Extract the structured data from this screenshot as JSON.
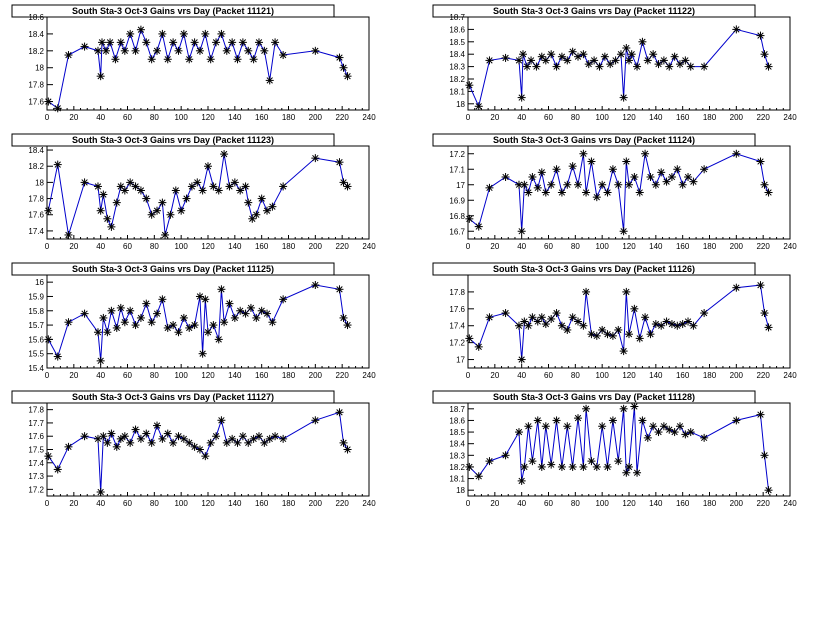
{
  "colors": {
    "line": "#0000cc",
    "marker": "#000000",
    "axis": "#000000"
  },
  "chart_data": [
    {
      "type": "line",
      "marker": "asterisk",
      "title": "South Sta-3 Oct-3 Gains vrs Day (Packet 11121)",
      "xlim": [
        0,
        240
      ],
      "ylim": [
        17.5,
        18.6
      ],
      "xticks": [
        0,
        20,
        40,
        60,
        80,
        100,
        120,
        140,
        160,
        180,
        200,
        220,
        240
      ],
      "yticks": [
        17.6,
        17.8,
        18,
        18.2,
        18.4,
        18.6
      ],
      "ytick_labels": [
        "17.6",
        "17.8",
        "18",
        "18.2",
        "18.4",
        "18.6"
      ],
      "x": [
        1,
        8,
        16,
        28,
        38,
        40,
        41,
        44,
        47,
        51,
        55,
        58,
        62,
        66,
        70,
        74,
        78,
        82,
        86,
        90,
        94,
        98,
        102,
        106,
        110,
        114,
        118,
        122,
        126,
        130,
        134,
        138,
        142,
        146,
        150,
        154,
        158,
        162,
        166,
        170,
        176,
        200,
        218,
        221,
        224
      ],
      "y": [
        17.6,
        17.52,
        18.15,
        18.25,
        18.2,
        17.9,
        18.3,
        18.2,
        18.3,
        18.1,
        18.3,
        18.2,
        18.4,
        18.2,
        18.45,
        18.3,
        18.1,
        18.2,
        18.4,
        18.1,
        18.3,
        18.2,
        18.4,
        18.1,
        18.3,
        18.2,
        18.4,
        18.1,
        18.3,
        18.4,
        18.2,
        18.3,
        18.1,
        18.3,
        18.2,
        18.1,
        18.3,
        18.2,
        17.85,
        18.3,
        18.15,
        18.2,
        18.12,
        18.0,
        17.9
      ]
    },
    {
      "type": "line",
      "marker": "asterisk",
      "title": "South Sta-3 Oct-3 Gains vrs Day (Packet 11122)",
      "xlim": [
        0,
        240
      ],
      "ylim": [
        17.95,
        18.7
      ],
      "xticks": [
        0,
        20,
        40,
        60,
        80,
        100,
        120,
        140,
        160,
        180,
        200,
        220,
        240
      ],
      "yticks": [
        18,
        18.1,
        18.2,
        18.3,
        18.4,
        18.5,
        18.6,
        18.7
      ],
      "ytick_labels": [
        "18",
        "18.1",
        "18.2",
        "18.3",
        "18.4",
        "18.5",
        "18.6",
        "18.7"
      ],
      "x": [
        1,
        8,
        16,
        28,
        38,
        40,
        41,
        44,
        47,
        51,
        55,
        58,
        62,
        66,
        70,
        74,
        78,
        82,
        86,
        90,
        94,
        98,
        102,
        106,
        110,
        114,
        116,
        118,
        120,
        122,
        126,
        130,
        134,
        138,
        142,
        146,
        150,
        154,
        158,
        162,
        166,
        176,
        200,
        218,
        221,
        224
      ],
      "y": [
        18.15,
        17.98,
        18.35,
        18.37,
        18.35,
        18.05,
        18.4,
        18.3,
        18.35,
        18.3,
        18.38,
        18.35,
        18.4,
        18.3,
        18.38,
        18.35,
        18.42,
        18.38,
        18.4,
        18.32,
        18.35,
        18.3,
        18.38,
        18.32,
        18.35,
        18.4,
        18.05,
        18.45,
        18.35,
        18.4,
        18.3,
        18.5,
        18.35,
        18.4,
        18.32,
        18.35,
        18.3,
        18.38,
        18.32,
        18.35,
        18.3,
        18.3,
        18.6,
        18.55,
        18.4,
        18.3
      ]
    },
    {
      "type": "line",
      "marker": "asterisk",
      "title": "South Sta-3 Oct-3 Gains vrs Day (Packet 11123)",
      "xlim": [
        0,
        240
      ],
      "ylim": [
        17.3,
        18.45
      ],
      "xticks": [
        0,
        20,
        40,
        60,
        80,
        100,
        120,
        140,
        160,
        180,
        200,
        220,
        240
      ],
      "yticks": [
        17.4,
        17.6,
        17.8,
        18,
        18.2,
        18.4
      ],
      "ytick_labels": [
        "17.4",
        "17.6",
        "17.8",
        "18",
        "18.2",
        "18.4"
      ],
      "x": [
        1,
        8,
        16,
        28,
        38,
        40,
        42,
        45,
        48,
        52,
        55,
        58,
        62,
        66,
        70,
        74,
        78,
        82,
        86,
        88,
        92,
        96,
        100,
        104,
        108,
        112,
        116,
        120,
        124,
        128,
        132,
        136,
        140,
        144,
        148,
        150,
        153,
        156,
        160,
        164,
        168,
        176,
        200,
        218,
        221,
        224
      ],
      "y": [
        17.65,
        18.22,
        17.35,
        18.0,
        17.95,
        17.65,
        17.85,
        17.55,
        17.45,
        17.75,
        17.95,
        17.9,
        18.0,
        17.95,
        17.9,
        17.8,
        17.6,
        17.65,
        17.75,
        17.35,
        17.6,
        17.9,
        17.65,
        17.8,
        17.95,
        18.0,
        17.9,
        18.2,
        17.95,
        17.9,
        18.35,
        17.95,
        18.0,
        17.9,
        17.95,
        17.75,
        17.55,
        17.6,
        17.8,
        17.65,
        17.7,
        17.95,
        18.3,
        18.25,
        18.0,
        17.95
      ]
    },
    {
      "type": "line",
      "marker": "asterisk",
      "title": "South Sta-3 Oct-3 Gains vrs Day (Packet 11124)",
      "xlim": [
        0,
        240
      ],
      "ylim": [
        16.65,
        17.25
      ],
      "xticks": [
        0,
        20,
        40,
        60,
        80,
        100,
        120,
        140,
        160,
        180,
        200,
        220,
        240
      ],
      "yticks": [
        16.7,
        16.8,
        16.9,
        17,
        17.1,
        17.2
      ],
      "ytick_labels": [
        "16.7",
        "16.8",
        "16.9",
        "17",
        "17.1",
        "17.2"
      ],
      "x": [
        1,
        8,
        16,
        28,
        38,
        40,
        42,
        45,
        48,
        52,
        55,
        58,
        62,
        66,
        70,
        74,
        78,
        82,
        86,
        88,
        92,
        96,
        100,
        104,
        108,
        112,
        116,
        118,
        120,
        124,
        128,
        132,
        136,
        140,
        144,
        148,
        152,
        156,
        160,
        164,
        168,
        176,
        200,
        218,
        221,
        224
      ],
      "y": [
        16.78,
        16.73,
        16.98,
        17.05,
        17.0,
        16.7,
        17.0,
        16.95,
        17.05,
        16.98,
        17.08,
        16.95,
        17.0,
        17.1,
        16.95,
        17.0,
        17.12,
        17.0,
        17.2,
        16.95,
        17.15,
        16.92,
        17.0,
        16.95,
        17.1,
        17.0,
        16.7,
        17.15,
        17.0,
        17.05,
        16.95,
        17.2,
        17.05,
        17.0,
        17.08,
        17.02,
        17.05,
        17.1,
        17.0,
        17.05,
        17.02,
        17.1,
        17.2,
        17.15,
        17.0,
        16.95
      ]
    },
    {
      "type": "line",
      "marker": "asterisk",
      "title": "South Sta-3 Oct-3 Gains vrs Day (Packet 11125)",
      "xlim": [
        0,
        240
      ],
      "ylim": [
        15.4,
        16.05
      ],
      "xticks": [
        0,
        20,
        40,
        60,
        80,
        100,
        120,
        140,
        160,
        180,
        200,
        220,
        240
      ],
      "yticks": [
        15.4,
        15.5,
        15.6,
        15.7,
        15.8,
        15.9,
        16
      ],
      "ytick_labels": [
        "15.4",
        "15.5",
        "15.6",
        "15.7",
        "15.8",
        "15.9",
        "16"
      ],
      "x": [
        1,
        8,
        16,
        28,
        38,
        40,
        42,
        45,
        48,
        52,
        55,
        58,
        62,
        66,
        70,
        74,
        78,
        82,
        86,
        90,
        94,
        98,
        102,
        106,
        110,
        114,
        116,
        118,
        120,
        124,
        128,
        130,
        132,
        136,
        140,
        144,
        148,
        152,
        156,
        160,
        164,
        168,
        176,
        200,
        218,
        221,
        224
      ],
      "y": [
        15.6,
        15.48,
        15.72,
        15.78,
        15.65,
        15.45,
        15.75,
        15.65,
        15.8,
        15.68,
        15.82,
        15.72,
        15.8,
        15.7,
        15.75,
        15.85,
        15.72,
        15.78,
        15.88,
        15.68,
        15.7,
        15.65,
        15.75,
        15.68,
        15.7,
        15.9,
        15.5,
        15.88,
        15.65,
        15.7,
        15.6,
        15.95,
        15.72,
        15.85,
        15.75,
        15.8,
        15.78,
        15.82,
        15.75,
        15.8,
        15.78,
        15.72,
        15.88,
        15.98,
        15.95,
        15.75,
        15.7
      ]
    },
    {
      "type": "line",
      "marker": "asterisk",
      "title": "South Sta-3 Oct-3 Gains vrs Day (Packet 11126)",
      "xlim": [
        0,
        240
      ],
      "ylim": [
        16.9,
        18.0
      ],
      "xticks": [
        0,
        20,
        40,
        60,
        80,
        100,
        120,
        140,
        160,
        180,
        200,
        220,
        240
      ],
      "yticks": [
        17,
        17.2,
        17.4,
        17.6,
        17.8
      ],
      "ytick_labels": [
        "17",
        "17.2",
        "17.4",
        "17.6",
        "17.8"
      ],
      "x": [
        1,
        8,
        16,
        28,
        38,
        40,
        42,
        45,
        48,
        52,
        55,
        58,
        62,
        66,
        70,
        74,
        78,
        82,
        86,
        88,
        92,
        96,
        100,
        104,
        108,
        112,
        116,
        118,
        120,
        124,
        128,
        132,
        136,
        140,
        144,
        148,
        152,
        156,
        160,
        164,
        168,
        176,
        200,
        218,
        221,
        224
      ],
      "y": [
        17.25,
        17.15,
        17.5,
        17.55,
        17.4,
        17.0,
        17.45,
        17.4,
        17.5,
        17.45,
        17.5,
        17.42,
        17.48,
        17.55,
        17.4,
        17.35,
        17.5,
        17.45,
        17.4,
        17.8,
        17.3,
        17.28,
        17.35,
        17.3,
        17.28,
        17.35,
        17.1,
        17.8,
        17.3,
        17.6,
        17.25,
        17.5,
        17.3,
        17.42,
        17.4,
        17.45,
        17.42,
        17.4,
        17.42,
        17.45,
        17.4,
        17.55,
        17.85,
        17.88,
        17.55,
        17.38
      ]
    },
    {
      "type": "line",
      "marker": "asterisk",
      "title": "South Sta-3 Oct-3 Gains vrs Day (Packet 11127)",
      "xlim": [
        0,
        240
      ],
      "ylim": [
        17.15,
        17.85
      ],
      "xticks": [
        0,
        20,
        40,
        60,
        80,
        100,
        120,
        140,
        160,
        180,
        200,
        220,
        240
      ],
      "yticks": [
        17.2,
        17.3,
        17.4,
        17.5,
        17.6,
        17.7,
        17.8
      ],
      "ytick_labels": [
        "17.2",
        "17.3",
        "17.4",
        "17.5",
        "17.6",
        "17.7",
        "17.8"
      ],
      "x": [
        1,
        8,
        16,
        28,
        38,
        40,
        42,
        45,
        48,
        52,
        55,
        58,
        62,
        66,
        70,
        74,
        78,
        82,
        86,
        90,
        94,
        98,
        102,
        106,
        110,
        114,
        118,
        122,
        126,
        130,
        134,
        138,
        142,
        146,
        150,
        154,
        158,
        162,
        166,
        170,
        176,
        200,
        218,
        221,
        224
      ],
      "y": [
        17.45,
        17.35,
        17.52,
        17.6,
        17.58,
        17.18,
        17.6,
        17.55,
        17.62,
        17.52,
        17.58,
        17.6,
        17.55,
        17.65,
        17.58,
        17.62,
        17.55,
        17.68,
        17.58,
        17.62,
        17.55,
        17.6,
        17.58,
        17.55,
        17.52,
        17.5,
        17.45,
        17.55,
        17.6,
        17.72,
        17.55,
        17.58,
        17.55,
        17.6,
        17.55,
        17.58,
        17.6,
        17.55,
        17.58,
        17.6,
        17.58,
        17.72,
        17.78,
        17.55,
        17.5
      ]
    },
    {
      "type": "line",
      "marker": "asterisk",
      "title": "South Sta-3 Oct-3 Gains vrs Day (Packet 11128)",
      "xlim": [
        0,
        240
      ],
      "ylim": [
        17.95,
        18.75
      ],
      "xticks": [
        0,
        20,
        40,
        60,
        80,
        100,
        120,
        140,
        160,
        180,
        200,
        220,
        240
      ],
      "yticks": [
        18,
        18.1,
        18.2,
        18.3,
        18.4,
        18.5,
        18.6,
        18.7
      ],
      "ytick_labels": [
        "18",
        "18.1",
        "18.2",
        "18.3",
        "18.4",
        "18.5",
        "18.6",
        "18.7"
      ],
      "x": [
        1,
        8,
        16,
        28,
        38,
        40,
        42,
        45,
        48,
        52,
        55,
        58,
        62,
        66,
        70,
        74,
        78,
        82,
        86,
        88,
        92,
        96,
        100,
        104,
        108,
        112,
        116,
        118,
        120,
        124,
        126,
        130,
        134,
        138,
        142,
        146,
        150,
        154,
        158,
        162,
        166,
        176,
        200,
        218,
        221,
        224
      ],
      "y": [
        18.2,
        18.12,
        18.25,
        18.3,
        18.5,
        18.08,
        18.2,
        18.55,
        18.25,
        18.6,
        18.2,
        18.55,
        18.22,
        18.6,
        18.2,
        18.55,
        18.2,
        18.62,
        18.2,
        18.7,
        18.25,
        18.2,
        18.55,
        18.2,
        18.6,
        18.25,
        18.7,
        18.15,
        18.2,
        18.72,
        18.15,
        18.6,
        18.45,
        18.55,
        18.5,
        18.55,
        18.52,
        18.5,
        18.55,
        18.48,
        18.5,
        18.45,
        18.6,
        18.65,
        18.3,
        18.0
      ]
    }
  ]
}
